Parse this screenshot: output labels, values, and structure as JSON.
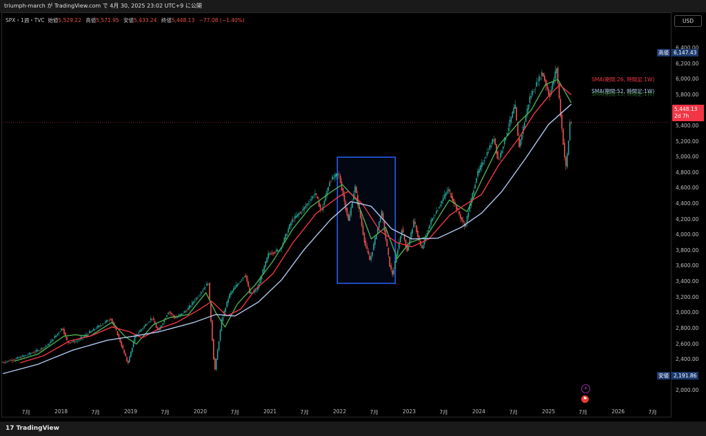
{
  "header": {
    "publish_line": "triumph-march が TradingView.com で 4月 30, 2025 23:02 UTC+9 に公開"
  },
  "legend": {
    "symbol": "SPX・1週・TVC",
    "open_label": "始値",
    "open_value": "5,529.22",
    "high_label": "高値",
    "high_value": "5,571.95",
    "low_label": "安値",
    "low_value": "5,433.24",
    "close_label": "終値",
    "close_value": "5,448.13",
    "change": "−77.08 (−1.40%)"
  },
  "currency_button": "USD",
  "badges": {
    "high_label": "高値",
    "high_value": "6,147.43",
    "low_label": "安値",
    "low_value": "2,191.86",
    "last_price": "5,448.13",
    "countdown": "2d 7h"
  },
  "sma_labels": {
    "sma26": "SMA(期間:26, 時間足:1W)",
    "sma52": "SMA(期間:52, 時間足:1W)",
    "sma13": "SMA(期間:13, 時間足:1W)"
  },
  "footer": {
    "brand": "TradingView",
    "logo_mark": "17"
  },
  "colors": {
    "up_candle": "#26a69a",
    "down_candle": "#ef5350",
    "sma13": "#4caf50",
    "sma26": "#f23645",
    "sma52": "#b2c8f0",
    "highlight_box": "#2962ff",
    "last_price_badge": "#f23645",
    "extreme_badge": "#1c3a6e"
  },
  "chart_data": {
    "type": "line",
    "title": "SPX・1週・TVC",
    "xlabel": "",
    "ylabel": "",
    "y_tick_labels": [
      "6,400.00",
      "6,200.00",
      "6,000.00",
      "5,800.00",
      "5,600.00",
      "5,400.00",
      "5,200.00",
      "5,000.00",
      "4,800.00",
      "4,600.00",
      "4,400.00",
      "4,200.00",
      "4,000.00",
      "3,800.00",
      "3,600.00",
      "3,400.00",
      "3,200.00",
      "3,000.00",
      "2,800.00",
      "2,600.00",
      "2,400.00",
      "2,200.00",
      "2,000.00"
    ],
    "y_ticks": [
      6400,
      6200,
      6000,
      5800,
      5600,
      5400,
      5200,
      5000,
      4800,
      4600,
      4400,
      4200,
      4000,
      3800,
      3600,
      3400,
      3200,
      3000,
      2800,
      2600,
      2400,
      2200,
      2000
    ],
    "ylim": [
      1800,
      6700
    ],
    "x_range": [
      "2017-03-01",
      "2026-10-01"
    ],
    "x_tick_labels": [
      "7月",
      "2018",
      "7月",
      "2019",
      "7月",
      "2020",
      "7月",
      "2021",
      "7月",
      "2022",
      "7月",
      "2023",
      "7月",
      "2024",
      "7月",
      "2025",
      "7月",
      "2026",
      "7月"
    ],
    "x_tick_dates": [
      "2017-07-01",
      "2018-01-01",
      "2018-07-01",
      "2019-01-01",
      "2019-07-01",
      "2020-01-01",
      "2020-07-01",
      "2021-01-01",
      "2021-07-01",
      "2022-01-01",
      "2022-07-01",
      "2023-01-01",
      "2023-07-01",
      "2024-01-01",
      "2024-07-01",
      "2025-01-01",
      "2025-07-01",
      "2026-01-01",
      "2026-07-01"
    ],
    "grid": false,
    "price_path": [
      [
        "2017-03-01",
        2360
      ],
      [
        "2017-05-01",
        2400
      ],
      [
        "2017-07-01",
        2450
      ],
      [
        "2017-09-01",
        2510
      ],
      [
        "2017-11-01",
        2590
      ],
      [
        "2018-01-15",
        2810
      ],
      [
        "2018-02-10",
        2620
      ],
      [
        "2018-04-01",
        2640
      ],
      [
        "2018-06-01",
        2740
      ],
      [
        "2018-08-01",
        2840
      ],
      [
        "2018-09-25",
        2930
      ],
      [
        "2018-11-01",
        2720
      ],
      [
        "2018-12-24",
        2350
      ],
      [
        "2019-01-31",
        2700
      ],
      [
        "2019-04-30",
        2940
      ],
      [
        "2019-06-01",
        2760
      ],
      [
        "2019-07-25",
        3020
      ],
      [
        "2019-09-01",
        2930
      ],
      [
        "2019-10-31",
        3040
      ],
      [
        "2019-12-31",
        3230
      ],
      [
        "2020-02-19",
        3390
      ],
      [
        "2020-03-23",
        2240
      ],
      [
        "2020-04-30",
        2910
      ],
      [
        "2020-06-08",
        3230
      ],
      [
        "2020-08-31",
        3500
      ],
      [
        "2020-09-24",
        3240
      ],
      [
        "2020-11-01",
        3300
      ],
      [
        "2020-12-31",
        3760
      ],
      [
        "2021-03-01",
        3810
      ],
      [
        "2021-05-01",
        4180
      ],
      [
        "2021-07-01",
        4330
      ],
      [
        "2021-09-02",
        4540
      ],
      [
        "2021-10-04",
        4300
      ],
      [
        "2021-11-18",
        4700
      ],
      [
        "2022-01-03",
        4790
      ],
      [
        "2022-02-24",
        4170
      ],
      [
        "2022-03-29",
        4630
      ],
      [
        "2022-05-20",
        3900
      ],
      [
        "2022-06-16",
        3670
      ],
      [
        "2022-08-16",
        4300
      ],
      [
        "2022-09-30",
        3580
      ],
      [
        "2022-10-13",
        3490
      ],
      [
        "2022-11-30",
        4080
      ],
      [
        "2022-12-28",
        3800
      ],
      [
        "2023-02-02",
        4180
      ],
      [
        "2023-03-13",
        3810
      ],
      [
        "2023-05-01",
        4170
      ],
      [
        "2023-07-31",
        4590
      ],
      [
        "2023-10-27",
        4100
      ],
      [
        "2023-12-29",
        4770
      ],
      [
        "2024-03-28",
        5250
      ],
      [
        "2024-04-19",
        4950
      ],
      [
        "2024-07-16",
        5670
      ],
      [
        "2024-08-05",
        5120
      ],
      [
        "2024-10-01",
        5760
      ],
      [
        "2024-12-06",
        6090
      ],
      [
        "2025-01-13",
        5780
      ],
      [
        "2025-02-19",
        6147.43
      ],
      [
        "2025-03-13",
        5520
      ],
      [
        "2025-04-08",
        4850
      ],
      [
        "2025-04-21",
        5150
      ],
      [
        "2025-04-30",
        5448.13
      ]
    ],
    "last_close": 5448.13,
    "all_time_high_visible": 6147.43,
    "low_visible": 2191.86,
    "series": [
      {
        "name": "SMA(期間:13, 時間足:1W)",
        "values": [
          [
            "2017-05-01",
            2380
          ],
          [
            "2017-09-01",
            2470
          ],
          [
            "2018-01-15",
            2700
          ],
          [
            "2018-03-15",
            2720
          ],
          [
            "2018-06-01",
            2700
          ],
          [
            "2018-09-25",
            2880
          ],
          [
            "2018-12-01",
            2700
          ],
          [
            "2019-01-31",
            2600
          ],
          [
            "2019-04-30",
            2850
          ],
          [
            "2019-07-25",
            2940
          ],
          [
            "2019-10-31",
            2980
          ],
          [
            "2020-01-31",
            3260
          ],
          [
            "2020-03-23",
            3000
          ],
          [
            "2020-05-10",
            2820
          ],
          [
            "2020-07-15",
            3120
          ],
          [
            "2020-10-15",
            3360
          ],
          [
            "2021-01-15",
            3660
          ],
          [
            "2021-05-01",
            4080
          ],
          [
            "2021-08-01",
            4360
          ],
          [
            "2021-11-15",
            4550
          ],
          [
            "2022-01-15",
            4650
          ],
          [
            "2022-04-01",
            4450
          ],
          [
            "2022-06-16",
            3950
          ],
          [
            "2022-08-30",
            4100
          ],
          [
            "2022-10-30",
            3700
          ],
          [
            "2023-01-01",
            3900
          ],
          [
            "2023-04-01",
            3980
          ],
          [
            "2023-07-31",
            4450
          ],
          [
            "2023-11-01",
            4300
          ],
          [
            "2024-01-15",
            4700
          ],
          [
            "2024-04-15",
            5150
          ],
          [
            "2024-07-31",
            5450
          ],
          [
            "2024-10-01",
            5600
          ],
          [
            "2024-12-15",
            5930
          ],
          [
            "2025-02-19",
            6000
          ],
          [
            "2025-04-30",
            5700
          ]
        ]
      },
      {
        "name": "SMA(期間:26, 時間足:1W)",
        "values": [
          [
            "2017-06-01",
            2360
          ],
          [
            "2017-10-01",
            2450
          ],
          [
            "2018-02-15",
            2640
          ],
          [
            "2018-06-01",
            2700
          ],
          [
            "2018-09-25",
            2820
          ],
          [
            "2018-12-24",
            2760
          ],
          [
            "2019-03-01",
            2680
          ],
          [
            "2019-06-01",
            2800
          ],
          [
            "2019-09-01",
            2880
          ],
          [
            "2019-12-31",
            3050
          ],
          [
            "2020-03-01",
            3150
          ],
          [
            "2020-05-20",
            2960
          ],
          [
            "2020-08-01",
            3050
          ],
          [
            "2020-10-15",
            3300
          ],
          [
            "2021-01-15",
            3500
          ],
          [
            "2021-05-01",
            3900
          ],
          [
            "2021-09-01",
            4280
          ],
          [
            "2021-12-31",
            4500
          ],
          [
            "2022-02-15",
            4560
          ],
          [
            "2022-05-01",
            4400
          ],
          [
            "2022-08-01",
            4050
          ],
          [
            "2022-11-01",
            3900
          ],
          [
            "2023-01-15",
            3850
          ],
          [
            "2023-04-15",
            3950
          ],
          [
            "2023-07-31",
            4250
          ],
          [
            "2023-10-15",
            4380
          ],
          [
            "2024-01-15",
            4520
          ],
          [
            "2024-04-15",
            4900
          ],
          [
            "2024-07-31",
            5250
          ],
          [
            "2024-10-15",
            5550
          ],
          [
            "2024-12-31",
            5780
          ],
          [
            "2025-03-01",
            5930
          ],
          [
            "2025-04-30",
            5800
          ]
        ]
      },
      {
        "name": "SMA(期間:52, 時間足:1W)",
        "values": [
          [
            "2017-03-01",
            2220
          ],
          [
            "2017-09-01",
            2340
          ],
          [
            "2018-03-01",
            2520
          ],
          [
            "2018-09-01",
            2650
          ],
          [
            "2019-01-15",
            2700
          ],
          [
            "2019-06-01",
            2760
          ],
          [
            "2019-12-01",
            2880
          ],
          [
            "2020-03-23",
            2980
          ],
          [
            "2020-07-01",
            2960
          ],
          [
            "2020-11-01",
            3140
          ],
          [
            "2021-03-01",
            3420
          ],
          [
            "2021-07-01",
            3820
          ],
          [
            "2021-11-15",
            4200
          ],
          [
            "2022-03-01",
            4430
          ],
          [
            "2022-06-15",
            4370
          ],
          [
            "2022-10-01",
            4080
          ],
          [
            "2023-01-15",
            3950
          ],
          [
            "2023-06-01",
            3960
          ],
          [
            "2023-10-01",
            4100
          ],
          [
            "2024-01-15",
            4280
          ],
          [
            "2024-05-01",
            4560
          ],
          [
            "2024-09-01",
            4980
          ],
          [
            "2025-01-01",
            5420
          ],
          [
            "2025-04-30",
            5680
          ]
        ]
      }
    ],
    "highlight_box": {
      "x_start": "2021-12-20",
      "x_end": "2022-10-20",
      "y_low": 3380,
      "y_high": 5000
    }
  }
}
